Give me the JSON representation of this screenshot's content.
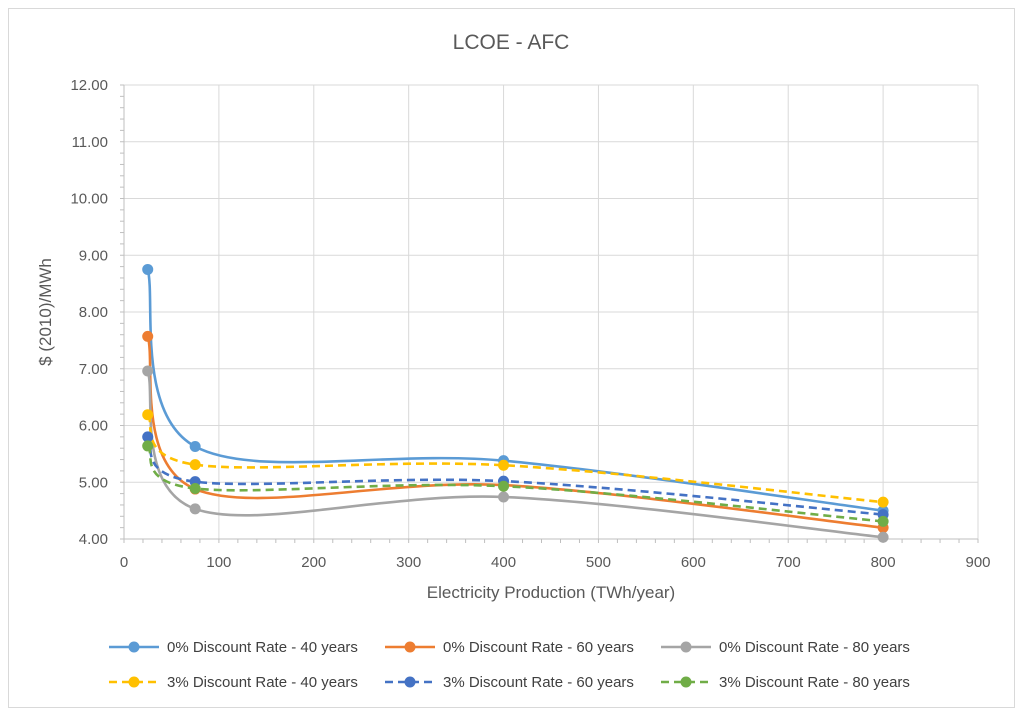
{
  "chart_data": {
    "type": "scatter",
    "title": "LCOE - AFC",
    "xlabel": "Electricity Production (TWh/year)",
    "ylabel": "$ (2010)/MWh",
    "xlim": [
      0,
      900
    ],
    "ylim": [
      4.0,
      12.0
    ],
    "x_ticks": [
      0,
      100,
      200,
      300,
      400,
      500,
      600,
      700,
      800,
      900
    ],
    "y_ticks": [
      4.0,
      5.0,
      6.0,
      7.0,
      8.0,
      9.0,
      10.0,
      11.0,
      12.0
    ],
    "x_tick_labels": [
      "0",
      "100",
      "200",
      "300",
      "400",
      "500",
      "600",
      "700",
      "800",
      "900"
    ],
    "y_tick_labels": [
      "4.00",
      "5.00",
      "6.00",
      "7.00",
      "8.00",
      "9.00",
      "10.00",
      "11.00",
      "12.00"
    ],
    "grid": true,
    "smoothed": true,
    "legend_position": "bottom",
    "x": [
      25,
      75,
      400,
      800
    ],
    "series": [
      {
        "name": "0% Discount Rate - 40 years",
        "color": "#5b9bd5",
        "dash": "solid",
        "values": [
          8.75,
          5.63,
          5.38,
          4.5
        ]
      },
      {
        "name": "0% Discount Rate - 60 years",
        "color": "#ed7d31",
        "dash": "solid",
        "values": [
          7.57,
          4.88,
          4.95,
          4.2
        ]
      },
      {
        "name": "0% Discount Rate - 80 years",
        "color": "#a5a5a5",
        "dash": "solid",
        "values": [
          6.96,
          4.53,
          4.74,
          4.03
        ]
      },
      {
        "name": "3% Discount Rate - 40 years",
        "color": "#ffc000",
        "dash": "dashed",
        "values": [
          6.19,
          5.31,
          5.3,
          4.65
        ]
      },
      {
        "name": "3% Discount Rate - 60 years",
        "color": "#4472c4",
        "dash": "dashed",
        "values": [
          5.8,
          5.01,
          5.02,
          4.43
        ]
      },
      {
        "name": "3% Discount Rate - 80 years",
        "color": "#70ad47",
        "dash": "dashed",
        "values": [
          5.64,
          4.89,
          4.93,
          4.31
        ]
      }
    ]
  }
}
